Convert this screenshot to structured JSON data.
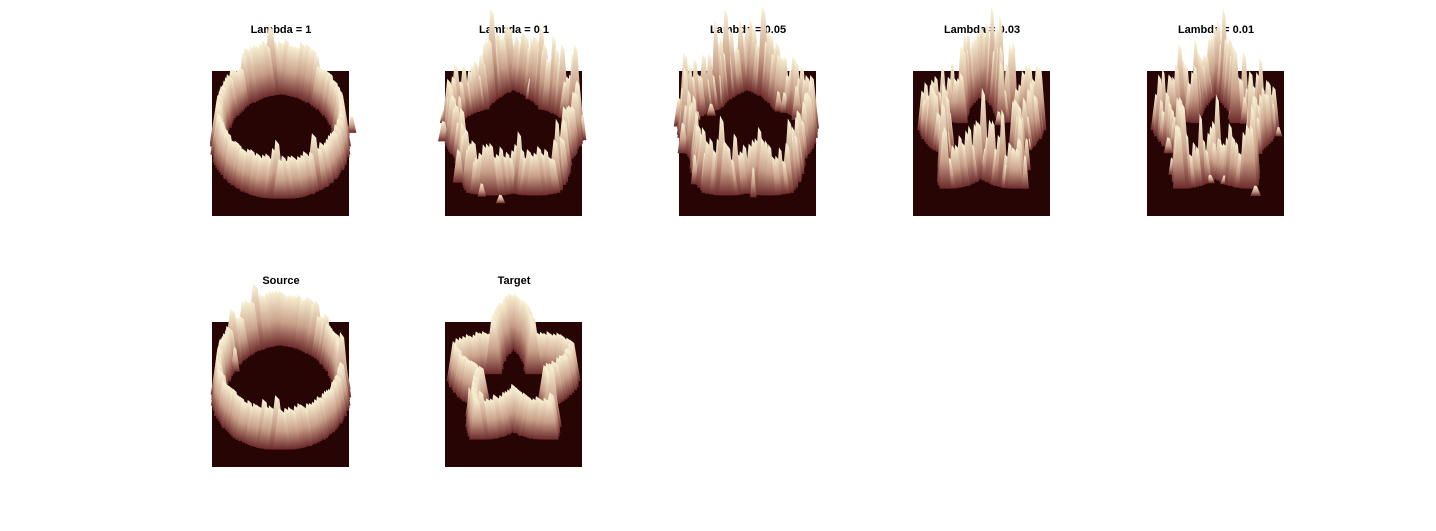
{
  "figure": {
    "panels": [
      {
        "id": "lambda-1",
        "title": "Lambda = 1",
        "shape": "ring",
        "noise": 0.15
      },
      {
        "id": "lambda-0.1",
        "title": "Lambda = 0.1",
        "shape": "ring-star",
        "noise": 0.55
      },
      {
        "id": "lambda-0.05",
        "title": "Lambda = 0.05",
        "shape": "ring-star",
        "noise": 0.75
      },
      {
        "id": "lambda-0.03",
        "title": "Lambda = 0.03",
        "shape": "star",
        "noise": 0.85
      },
      {
        "id": "lambda-0.01",
        "title": "Lambda = 0.01",
        "shape": "star",
        "noise": 0.9
      },
      {
        "id": "source",
        "title": "Source",
        "shape": "ring",
        "noise": 0.15
      },
      {
        "id": "target",
        "title": "Target",
        "shape": "star-solid",
        "noise": 0.1
      }
    ],
    "colors": {
      "background": "#270505",
      "low": "#6b2a2a",
      "mid": "#c9a08a",
      "high": "#fbf5d8"
    }
  }
}
